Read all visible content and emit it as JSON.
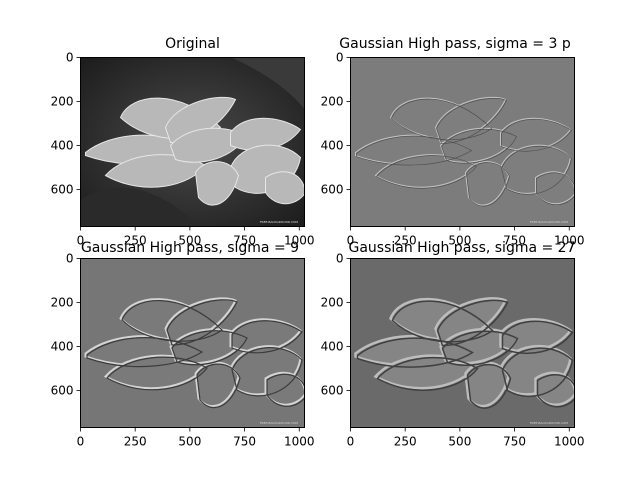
{
  "figure": {
    "panels": [
      {
        "title": "Original",
        "xticks": [
          "0",
          "250",
          "500",
          "750",
          "1000"
        ],
        "yticks": [
          "0",
          "200",
          "400",
          "600"
        ],
        "show_xticks": true
      },
      {
        "title": "Gaussian High pass, sigma = 3 p",
        "xticks": [
          "0",
          "250",
          "500",
          "750",
          "1000"
        ],
        "yticks": [
          "0",
          "200",
          "400",
          "600"
        ],
        "show_xticks": true
      },
      {
        "title": "Gaussian High pass, sigma = 9",
        "xticks": [
          "0",
          "250",
          "500",
          "750",
          "1000"
        ],
        "yticks": [
          "0",
          "200",
          "400",
          "600"
        ],
        "show_xticks": true
      },
      {
        "title": "Gaussian High pass, sigma = 27",
        "xticks": [
          "0",
          "250",
          "500",
          "750",
          "1000"
        ],
        "yticks": [
          "0",
          "200",
          "400",
          "600"
        ],
        "show_xticks": true
      }
    ],
    "image_extent": {
      "x": [
        0,
        1024
      ],
      "y": [
        768,
        0
      ]
    },
    "watermark": "FREE-BACKGROUND.COM"
  }
}
